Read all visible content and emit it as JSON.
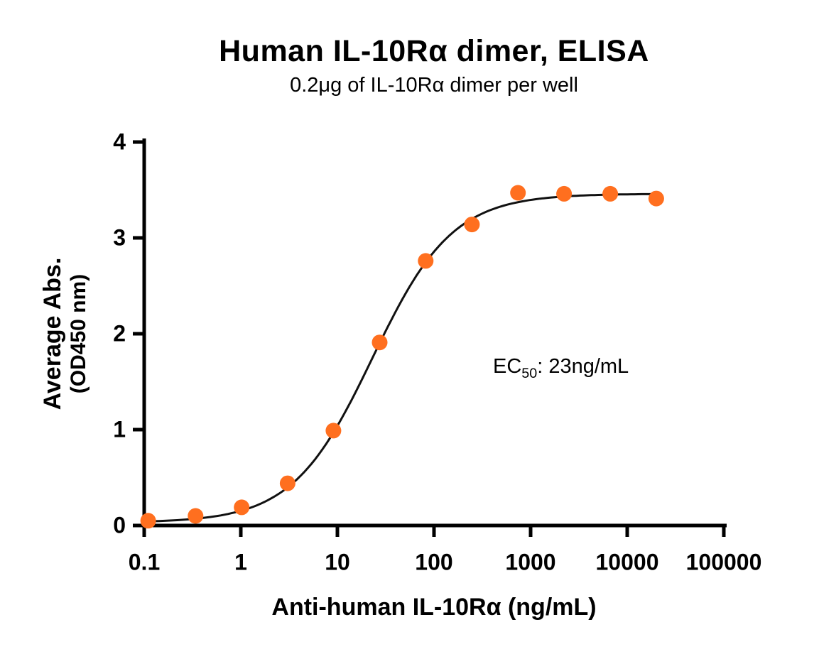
{
  "chart_data": {
    "type": "scatter",
    "curve_type": "4PL sigmoid dose-response fit",
    "title": "Human IL-10Rα dimer, ELISA",
    "subtitle": "0.2μg of IL-10Rα dimer per well",
    "xlabel": "Anti-human IL-10Rα (ng/mL)",
    "ylabel_line1": "Average Abs.",
    "ylabel_line2": "(OD450 nm)",
    "x_scale": "log10",
    "xlim": [
      0.1,
      100000
    ],
    "ylim": [
      0,
      4
    ],
    "x_ticks": [
      0.1,
      1,
      10,
      100,
      1000,
      10000,
      100000
    ],
    "x_tick_labels": [
      "0.1",
      "1",
      "10",
      "100",
      "1000",
      "10000",
      "100000"
    ],
    "y_ticks": [
      0,
      1,
      2,
      3,
      4
    ],
    "y_tick_labels": [
      "0",
      "1",
      "2",
      "3",
      "4"
    ],
    "grid": "off",
    "legend": "none",
    "points": {
      "x": [
        0.11,
        0.34,
        1.02,
        3.05,
        9.1,
        27.4,
        82,
        247,
        740,
        2220,
        6670,
        20000
      ],
      "y": [
        0.05,
        0.1,
        0.19,
        0.44,
        0.99,
        1.91,
        2.76,
        3.14,
        3.47,
        3.46,
        3.46,
        3.41
      ]
    },
    "fit": {
      "bottom": 0.03,
      "top": 3.46,
      "ec50": 23,
      "hill": 1.05
    },
    "annotation": {
      "prefix": "EC",
      "sub": "50",
      "rest": ": 23ng/mL"
    },
    "colors": {
      "point": "#FF6F1F",
      "curve": "#111111",
      "axis": "#000000",
      "text": "#000000"
    }
  }
}
